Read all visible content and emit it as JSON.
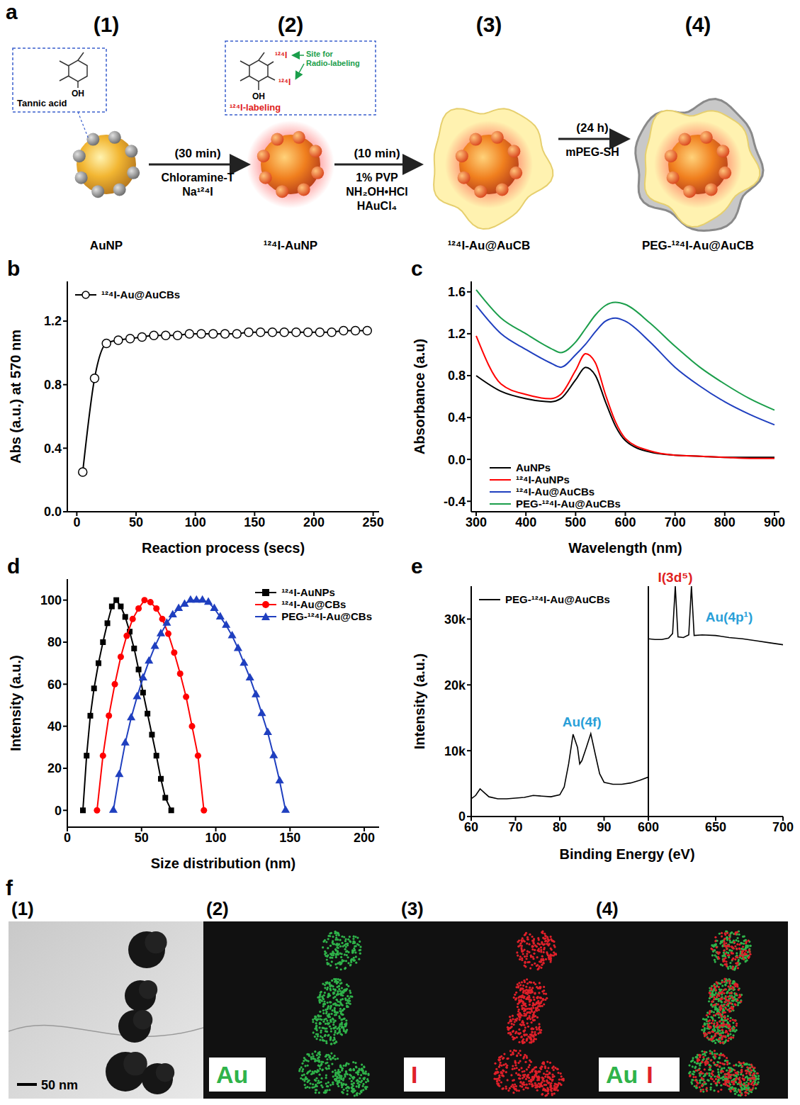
{
  "scheme": {
    "panel": "a",
    "stages": [
      {
        "label": "(1)",
        "name": "AuNP",
        "inset": {
          "title": "Tannic acid",
          "atoms": [
            "OH"
          ]
        }
      },
      {
        "label": "(2)",
        "name": "¹²⁴I-AuNP",
        "inset": {
          "title": "¹²⁴I-labeling",
          "note": "Site for Radio-labeling",
          "atoms": [
            "¹²⁴I",
            "¹²⁴I",
            "OH"
          ]
        }
      },
      {
        "label": "(3)",
        "name": "¹²⁴I-Au@AuCB"
      },
      {
        "label": "(4)",
        "name": "PEG-¹²⁴I-Au@AuCB"
      }
    ],
    "steps": [
      {
        "time": "(30 min)",
        "reagents": [
          "Chloramine-T",
          "Na¹²⁴I"
        ]
      },
      {
        "time": "(10 min)",
        "reagents": [
          "1% PVP",
          "NH₂OH•HCl",
          "HAuCl₄"
        ]
      },
      {
        "time": "(24 h)",
        "reagents": [
          "mPEG-SH"
        ]
      }
    ]
  },
  "chart_data": [
    {
      "panel": "b",
      "type": "line",
      "xlabel": "Reaction process (secs)",
      "ylabel": "Abs (a.u.) at 570 nm",
      "x": [
        5,
        15,
        25,
        35,
        45,
        55,
        65,
        75,
        85,
        95,
        105,
        115,
        125,
        135,
        145,
        155,
        165,
        175,
        185,
        195,
        205,
        215,
        225,
        235,
        245
      ],
      "series": [
        {
          "name": "¹²⁴I-Au@AuCBs",
          "color": "#000000",
          "marker": "open_circle",
          "line_style": "solid",
          "values": [
            0.25,
            0.84,
            1.06,
            1.08,
            1.09,
            1.1,
            1.11,
            1.11,
            1.11,
            1.12,
            1.12,
            1.12,
            1.12,
            1.12,
            1.13,
            1.13,
            1.13,
            1.13,
            1.13,
            1.13,
            1.13,
            1.13,
            1.14,
            1.14,
            1.14
          ]
        }
      ],
      "xlim": [
        -8,
        255
      ],
      "xticks": [
        0,
        50,
        100,
        150,
        200,
        250
      ],
      "ylim": [
        0,
        1.45
      ],
      "yticks": [
        {
          "value": 0,
          "label": "0.0"
        },
        0.4,
        0.8,
        1.2
      ],
      "legend": "upper left"
    },
    {
      "panel": "c",
      "type": "line",
      "xlabel": "Wavelength (nm)",
      "ylabel": "Absorbance (a.u)",
      "x": [
        300,
        350,
        400,
        450,
        470,
        500,
        520,
        540,
        560,
        580,
        600,
        650,
        700,
        750,
        800,
        850,
        900
      ],
      "series": [
        {
          "name": "AuNPs",
          "color": "#000000",
          "line_style": "solid",
          "values": [
            0.8,
            0.65,
            0.58,
            0.55,
            0.58,
            0.76,
            0.88,
            0.8,
            0.55,
            0.32,
            0.18,
            0.07,
            0.04,
            0.03,
            0.02,
            0.02,
            0.02
          ]
        },
        {
          "name": "¹²⁴I-AuNPs",
          "color": "#ff0000",
          "line_style": "solid",
          "values": [
            1.18,
            0.72,
            0.62,
            0.58,
            0.62,
            0.85,
            1.01,
            0.92,
            0.62,
            0.36,
            0.2,
            0.08,
            0.04,
            0.03,
            0.02,
            0.01,
            0.01
          ]
        },
        {
          "name": "¹²⁴I-Au@AuCBs",
          "color": "#1f3fbf",
          "line_style": "solid",
          "values": [
            1.47,
            1.2,
            1.05,
            0.92,
            0.88,
            1.0,
            1.1,
            1.22,
            1.32,
            1.35,
            1.32,
            1.12,
            0.88,
            0.7,
            0.55,
            0.43,
            0.33
          ]
        },
        {
          "name": "PEG-¹²⁴I-Au@AuCBs",
          "color": "#1b9e4b",
          "line_style": "solid",
          "values": [
            1.62,
            1.35,
            1.2,
            1.06,
            1.02,
            1.12,
            1.25,
            1.38,
            1.47,
            1.5,
            1.48,
            1.3,
            1.08,
            0.88,
            0.72,
            0.58,
            0.47
          ]
        }
      ],
      "xlim": [
        290,
        910
      ],
      "xticks": [
        300,
        400,
        500,
        600,
        700,
        800,
        900
      ],
      "ylim": [
        -0.5,
        1.7
      ],
      "yticks": [
        -0.4,
        {
          "value": 0,
          "label": "0.0"
        },
        0.4,
        0.8,
        1.2,
        1.6
      ],
      "legend": "lower left"
    },
    {
      "panel": "d",
      "type": "scatter",
      "xlabel": "Size distribution (nm)",
      "ylabel": "Intensity (a.u.)",
      "series": [
        {
          "name": "¹²⁴I-AuNPs",
          "color": "#000000",
          "marker": "square",
          "line_style": "solid",
          "x": [
            10.5,
            13,
            15.5,
            18,
            21,
            24,
            27,
            30,
            33,
            36,
            39,
            42,
            45,
            48,
            51,
            54,
            57,
            60,
            63,
            66,
            70
          ],
          "values": [
            0,
            26,
            45,
            58,
            70,
            80,
            89,
            97,
            100,
            97,
            92,
            85,
            77,
            67,
            56,
            46,
            36,
            26,
            15,
            6,
            0
          ]
        },
        {
          "name": "¹²⁴I-Au@CBs",
          "color": "#ff0000",
          "marker": "circle",
          "line_style": "solid",
          "x": [
            20,
            24,
            28,
            32,
            36,
            40,
            44,
            48,
            52,
            56,
            60,
            64,
            68,
            72,
            76,
            80,
            84,
            88,
            92
          ],
          "values": [
            0,
            26,
            45,
            60,
            73,
            83,
            91,
            96,
            100,
            99,
            96,
            91,
            84,
            75,
            65,
            54,
            40,
            26,
            0
          ]
        },
        {
          "name": "PEG-¹²⁴I-Au@CBs",
          "color": "#1f3fbf",
          "marker": "triangle",
          "line_style": "solid",
          "x": [
            31,
            35,
            39,
            43,
            47,
            51,
            55,
            59,
            63,
            67,
            71,
            75,
            79,
            83,
            87,
            91,
            95,
            99,
            103,
            107,
            111,
            115,
            119,
            123,
            127,
            131,
            135,
            139,
            143,
            147
          ],
          "values": [
            0,
            17,
            32,
            44,
            54,
            63,
            71,
            78,
            84,
            89,
            93,
            96,
            98,
            100,
            100,
            100,
            99,
            96,
            92,
            88,
            83,
            77,
            70,
            63,
            55,
            46,
            37,
            26,
            14,
            0
          ]
        }
      ],
      "xlim": [
        0,
        210
      ],
      "xticks": [
        0,
        50,
        100,
        150,
        200
      ],
      "ylim": [
        -8,
        110
      ],
      "yticks": [
        0,
        20,
        40,
        60,
        80,
        100
      ],
      "legend": "upper right"
    },
    {
      "panel": "e",
      "type": "line",
      "xlabel": "Binding Energy (eV)",
      "ylabel": "Intensity (a.u.)",
      "series": [
        {
          "name": "PEG-¹²⁴I-Au@AuCBs",
          "color": "#000000",
          "line_style": "solid"
        }
      ],
      "ylim": [
        0,
        35000
      ],
      "yticks": [
        0,
        {
          "value": 10000,
          "label": "10k"
        },
        {
          "value": 20000,
          "label": "20k"
        },
        {
          "value": 30000,
          "label": "30k"
        }
      ],
      "segments": [
        {
          "xlim": [
            60,
            100
          ],
          "xticks": [
            60,
            70,
            80,
            90
          ],
          "x": [
            60,
            61,
            62,
            63,
            64,
            66,
            68,
            70,
            72,
            74,
            76,
            78,
            80,
            81,
            82,
            83,
            84,
            84.5,
            85,
            86,
            87,
            88,
            89,
            90,
            92,
            94,
            96,
            98,
            100
          ],
          "values": [
            2700,
            3200,
            4200,
            3600,
            3000,
            2700,
            2700,
            2800,
            2900,
            3200,
            3100,
            3000,
            3300,
            4500,
            8000,
            12500,
            10500,
            8000,
            8500,
            10500,
            12600,
            9500,
            6500,
            5200,
            4900,
            4900,
            5100,
            5500,
            6000
          ]
        },
        {
          "xlim": [
            600,
            700
          ],
          "xticks": [
            600,
            650,
            700
          ],
          "x": [
            600,
            605,
            610,
            615,
            618,
            620,
            622,
            626,
            630,
            632,
            634,
            640,
            650,
            660,
            670,
            680,
            690,
            700
          ],
          "values": [
            27000,
            26900,
            26900,
            27100,
            27800,
            35000,
            27300,
            27200,
            27600,
            35000,
            27500,
            27600,
            27500,
            27200,
            27000,
            26700,
            26400,
            26100
          ]
        }
      ],
      "annotations": [
        {
          "text": "Au(4f)",
          "x": 85,
          "y": 13000,
          "color": "#2a9fd8"
        },
        {
          "text": "I(3d⁵)",
          "x": 620,
          "y": 35000,
          "color": "#e02020"
        },
        {
          "text": "Au(4p¹)",
          "x": 660,
          "y": 29000,
          "color": "#2a9fd8"
        }
      ],
      "legend": "upper left"
    }
  ],
  "eds": {
    "panel": "f",
    "images": [
      {
        "label": "(1)",
        "scale_bar": "50 nm"
      },
      {
        "label": "(2)",
        "elements": [
          {
            "name": "Au",
            "color": "#2fb34a"
          }
        ]
      },
      {
        "label": "(3)",
        "elements": [
          {
            "name": "I",
            "color": "#e0202a"
          }
        ]
      },
      {
        "label": "(4)",
        "elements": [
          {
            "name": "Au",
            "color": "#2fb34a"
          },
          {
            "name": "I",
            "color": "#e0202a"
          }
        ]
      }
    ]
  }
}
